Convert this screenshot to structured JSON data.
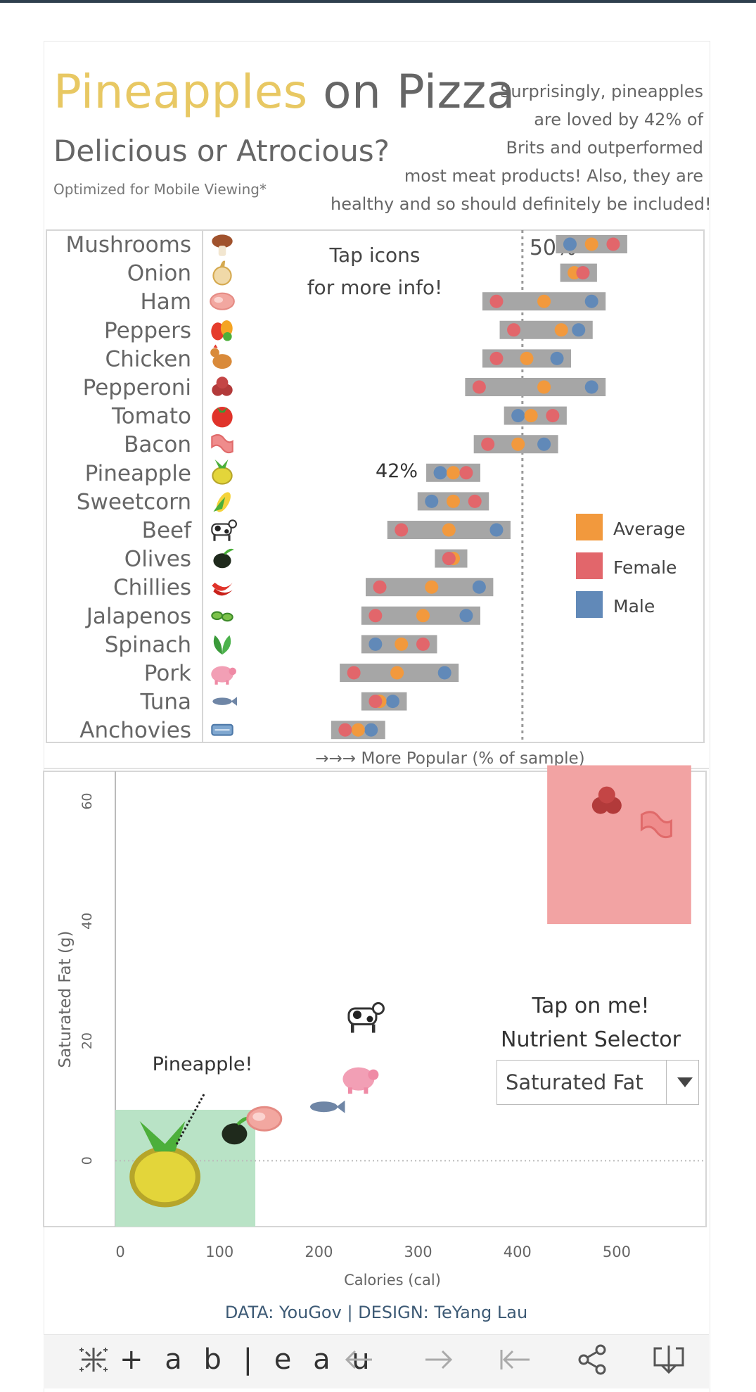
{
  "header": {
    "title_highlight": "Pineapples",
    "title_rest": "on Pizza",
    "subtitle": "Delicious or Atrocious?",
    "note": "Optimized for Mobile Viewing*",
    "description_lines": [
      "Surprisingly, pineapples",
      "are loved by 42% of",
      "Brits and outperformed",
      "most meat products! Also, they are",
      "healthy and so should definitely be included!"
    ]
  },
  "colors": {
    "title_accent": "#e8c863",
    "average": "#f2993d",
    "female": "#e2666b",
    "male": "#6189b8",
    "range_bar": "#a6a6a6",
    "highlight_red": "#f2a3a3",
    "highlight_green": "#b9e3c6",
    "credit": "#3d5a75"
  },
  "chart_data": [
    {
      "type": "dot-range",
      "x_title": "→→→ More Popular (% of sample)",
      "reference_line": {
        "value": 50,
        "label": "50%"
      },
      "annotation": {
        "category": "Pineapple",
        "label": "42%"
      },
      "hint_lines": [
        "Tap icons",
        "for more info!"
      ],
      "legend_position": "right",
      "legend": [
        "Average",
        "Female",
        "Male"
      ],
      "series_order": [
        "male",
        "average",
        "female"
      ],
      "categories": [
        "Mushrooms",
        "Onion",
        "Ham",
        "Peppers",
        "Chicken",
        "Pepperoni",
        "Tomato",
        "Bacon",
        "Pineapple",
        "Sweetcorn",
        "Beef",
        "Olives",
        "Chillies",
        "Jalapenos",
        "Spinach",
        "Pork",
        "Tuna",
        "Anchovies"
      ],
      "icons": [
        "mushroom-icon",
        "onion-icon",
        "ham-icon",
        "peppers-icon",
        "chicken-icon",
        "pepperoni-icon",
        "tomato-icon",
        "bacon-icon",
        "pineapple-icon",
        "sweetcorn-icon",
        "cow-icon",
        "olive-icon",
        "chilli-icon",
        "jalapeno-icon",
        "spinach-icon",
        "pig-icon",
        "fish-icon",
        "anchovy-icon"
      ],
      "male": [
        55.5,
        57.0,
        58.0,
        56.5,
        54.0,
        58.0,
        49.5,
        52.5,
        40.5,
        39.5,
        47.0,
        41.5,
        45.0,
        43.5,
        33.0,
        41.0,
        35.0,
        32.5
      ],
      "average": [
        58.0,
        56.0,
        52.5,
        54.5,
        50.5,
        52.5,
        51.0,
        49.5,
        42.0,
        42.0,
        41.5,
        42.0,
        39.5,
        38.5,
        36.0,
        35.5,
        33.5,
        31.0
      ],
      "female": [
        60.5,
        57.0,
        47.0,
        49.0,
        47.0,
        45.0,
        53.5,
        46.0,
        43.5,
        44.5,
        36.0,
        41.5,
        33.5,
        33.0,
        38.5,
        30.5,
        33.0,
        29.5
      ],
      "xlim": [
        13,
        71
      ]
    },
    {
      "type": "scatter",
      "xlabel": "Calories (cal)",
      "ylabel": "Saturated Fat (g)",
      "x_ticks": [
        0,
        100,
        200,
        300,
        400,
        500
      ],
      "y_ticks": [
        0,
        20,
        40,
        60
      ],
      "xlim": [
        -5,
        590
      ],
      "ylim": [
        -11,
        65
      ],
      "callout": "Pineapple!",
      "points": [
        {
          "icon": "pineapple-icon",
          "x": 45,
          "y": -1
        },
        {
          "icon": "olive-icon",
          "x": 115,
          "y": 5
        },
        {
          "icon": "ham-icon",
          "x": 145,
          "y": 7
        },
        {
          "icon": "fish-icon",
          "x": 205,
          "y": 9
        },
        {
          "icon": "pig-icon",
          "x": 240,
          "y": 14
        },
        {
          "icon": "cow-icon",
          "x": 245,
          "y": 24
        },
        {
          "icon": "pepperoni-icon",
          "x": 490,
          "y": 60
        },
        {
          "icon": "bacon-icon",
          "x": 540,
          "y": 56
        }
      ],
      "highlight_regions": [
        {
          "color": "red",
          "x0": 430,
          "x1": 575,
          "y0": 39.5,
          "y1": 66
        },
        {
          "color": "green",
          "x0": -5,
          "x1": 136,
          "y0": -11,
          "y1": 8.5
        }
      ]
    }
  ],
  "nutrient_selector": {
    "tap_label": "Tap on me!",
    "title": "Nutrient Selector",
    "selected": "Saturated Fat"
  },
  "credit": "DATA: YouGov | DESIGN: TeYang Lau",
  "footer": {
    "brand": "+ a b | e a u",
    "brand_icon": "tableau-logo-icon",
    "nav_icons": [
      "undo-icon",
      "redo-icon",
      "revert-icon",
      "share-icon",
      "download-icon"
    ]
  }
}
